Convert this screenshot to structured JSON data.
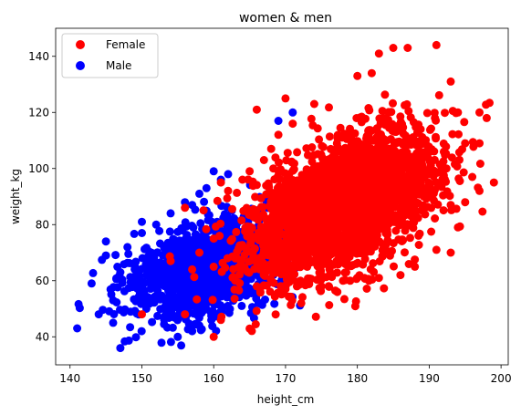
{
  "chart_data": {
    "type": "scatter",
    "title": "women & men",
    "xlabel": "height_cm",
    "ylabel": "weight_kg",
    "xlim": [
      138,
      201
    ],
    "ylim": [
      30,
      150
    ],
    "xticks": [
      140,
      150,
      160,
      170,
      180,
      190,
      200
    ],
    "yticks": [
      40,
      60,
      80,
      100,
      120,
      140
    ],
    "grid": false,
    "legend_position": "top-left",
    "series": [
      {
        "name": "Female",
        "color": "#ff0000",
        "draw_order": 2,
        "cloud": {
          "center": [
            178,
            87
          ],
          "sd": [
            6.5,
            13
          ],
          "correlation": 0.5,
          "count": 2600
        },
        "points": [
          [
            191,
            144
          ],
          [
            185,
            143
          ],
          [
            187,
            143
          ],
          [
            183,
            141
          ],
          [
            182,
            134
          ],
          [
            180,
            133
          ],
          [
            193,
            131
          ],
          [
            170,
            125
          ],
          [
            166,
            121
          ],
          [
            197,
            120
          ],
          [
            194,
            120
          ],
          [
            198,
            118
          ],
          [
            195,
            109
          ],
          [
            197,
            109
          ],
          [
            199,
            95
          ],
          [
            196,
            97
          ],
          [
            197,
            92
          ],
          [
            195,
            88
          ],
          [
            193,
            87
          ],
          [
            189,
            85
          ],
          [
            194,
            79
          ],
          [
            191,
            71
          ],
          [
            193,
            70
          ],
          [
            188,
            65
          ],
          [
            186,
            62
          ],
          [
            183,
            61
          ],
          [
            181,
            61
          ],
          [
            179,
            60
          ],
          [
            161,
            95
          ],
          [
            162,
            92
          ],
          [
            164,
            96
          ],
          [
            165,
            99
          ],
          [
            167,
            103
          ],
          [
            168,
            107
          ],
          [
            169,
            112
          ],
          [
            171,
            116
          ],
          [
            174,
            123
          ],
          [
            160,
            40
          ],
          [
            161,
            46
          ],
          [
            150,
            48
          ],
          [
            156,
            48
          ],
          [
            154,
            67
          ],
          [
            157,
            64
          ],
          [
            158,
            70
          ],
          [
            156,
            86
          ],
          [
            160,
            65
          ],
          [
            160,
            75
          ],
          [
            163,
            60
          ],
          [
            166,
            58
          ],
          [
            170,
            57
          ],
          [
            175,
            58
          ],
          [
            178,
            60
          ]
        ]
      },
      {
        "name": "Male",
        "color": "#0000ff",
        "draw_order": 1,
        "cloud": {
          "center": [
            160,
            65
          ],
          "sd": [
            5.5,
            9
          ],
          "correlation": 0.45,
          "count": 1400
        },
        "points": [
          [
            141,
            43
          ],
          [
            144,
            48
          ],
          [
            146,
            45
          ],
          [
            147,
            36
          ],
          [
            145,
            69
          ],
          [
            145,
            74
          ],
          [
            143,
            59
          ],
          [
            147,
            63
          ],
          [
            146,
            53
          ],
          [
            148,
            72
          ],
          [
            149,
            49
          ],
          [
            150,
            77
          ],
          [
            150,
            81
          ],
          [
            152,
            80
          ],
          [
            154,
            84
          ],
          [
            156,
            88
          ],
          [
            157,
            87
          ],
          [
            158,
            91
          ],
          [
            159,
            93
          ],
          [
            160,
            99
          ],
          [
            161,
            96
          ],
          [
            162,
            98
          ],
          [
            169,
            117
          ],
          [
            171,
            120
          ],
          [
            155,
            40
          ],
          [
            157,
            42
          ],
          [
            158,
            44
          ],
          [
            153,
            50
          ],
          [
            150,
            55
          ],
          [
            155,
            52
          ]
        ]
      }
    ]
  }
}
